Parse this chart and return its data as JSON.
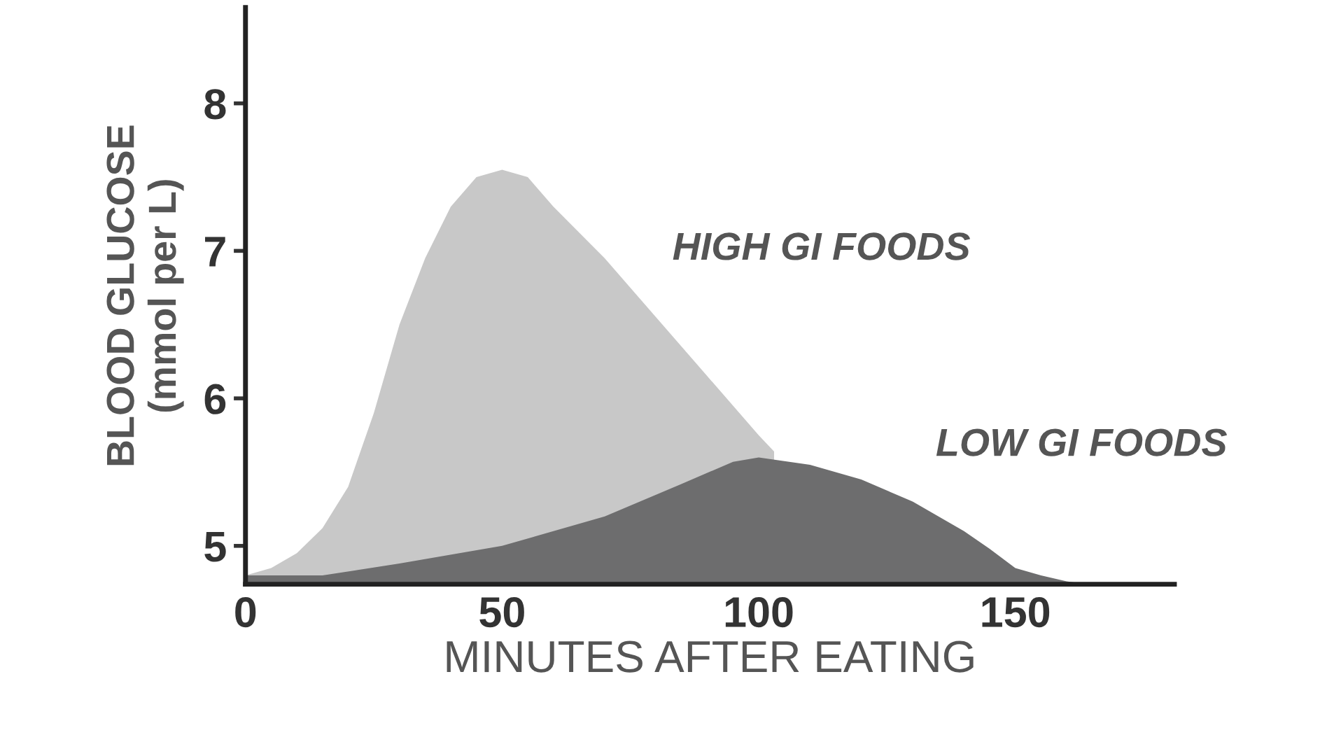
{
  "chart_data": {
    "type": "area",
    "xlabel": "MINUTES AFTER EATING",
    "ylabel": "BLOOD GLUCOSE\n(mmol per L)",
    "xlim": [
      0,
      181
    ],
    "ylim": [
      4.74,
      8.65
    ],
    "xticks": [
      0,
      50,
      100,
      150
    ],
    "yticks": [
      5,
      6,
      7,
      8
    ],
    "grid": false,
    "legend": false,
    "series": [
      {
        "name": "HIGH GI FOODS",
        "color": "#c8c8c8",
        "x": [
          0,
          5,
          10,
          15,
          20,
          25,
          30,
          35,
          40,
          45,
          50,
          55,
          60,
          70,
          80,
          90,
          100,
          103
        ],
        "values": [
          4.8,
          4.85,
          4.95,
          5.12,
          5.4,
          5.9,
          6.5,
          6.95,
          7.3,
          7.5,
          7.55,
          7.5,
          7.3,
          6.95,
          6.55,
          6.15,
          5.75,
          5.64
        ]
      },
      {
        "name": "LOW GI FOODS",
        "color": "#6d6d6e",
        "x": [
          0,
          15,
          30,
          50,
          70,
          85,
          95,
          100,
          110,
          120,
          130,
          140,
          145,
          150,
          155,
          160,
          162
        ],
        "values": [
          4.8,
          4.8,
          4.88,
          5.0,
          5.2,
          5.42,
          5.57,
          5.6,
          5.55,
          5.45,
          5.3,
          5.1,
          4.98,
          4.85,
          4.8,
          4.76,
          4.75
        ]
      }
    ]
  }
}
